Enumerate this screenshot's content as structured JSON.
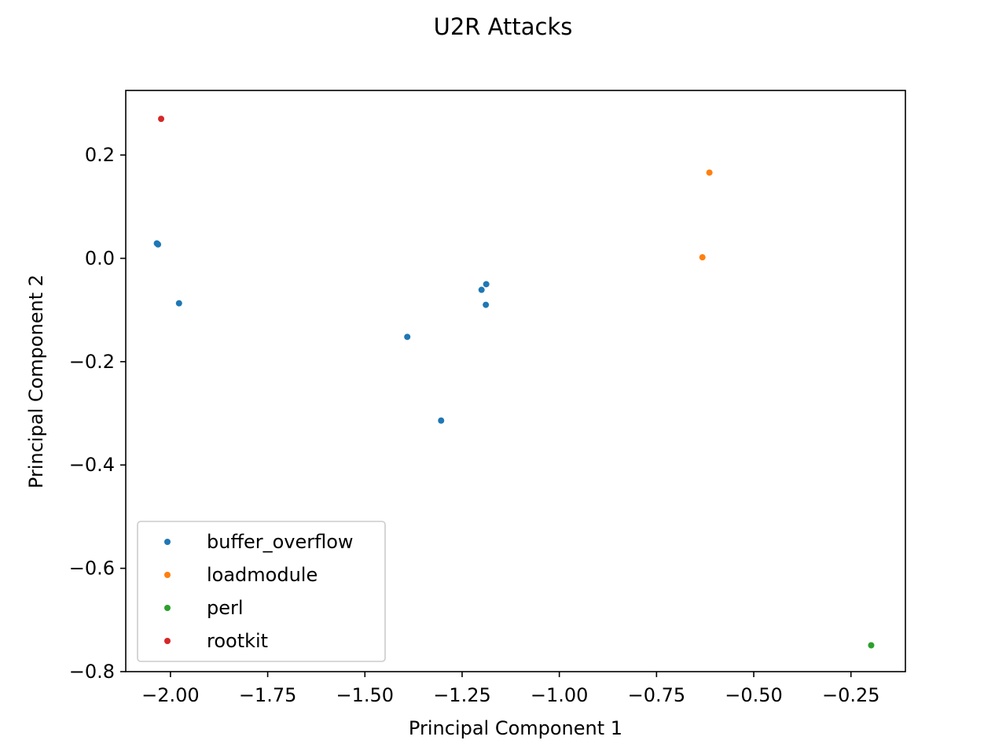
{
  "chart_data": {
    "type": "scatter",
    "title": "U2R Attacks",
    "xlabel": "Principal Component 1",
    "ylabel": "Principal Component 2",
    "xlim": [
      -2.115,
      -0.11
    ],
    "ylim": [
      -0.8,
      0.325
    ],
    "xticks": [
      -2.0,
      -1.75,
      -1.5,
      -1.25,
      -1.0,
      -0.75,
      -0.5,
      -0.25
    ],
    "xtick_labels": [
      "−2.00",
      "−1.75",
      "−1.50",
      "−1.25",
      "−1.00",
      "−0.75",
      "−0.50",
      "−0.25"
    ],
    "yticks": [
      0.2,
      0.0,
      -0.2,
      -0.4,
      -0.6,
      -0.8
    ],
    "ytick_labels": [
      "0.2",
      "0.0",
      "−0.2",
      "−0.4",
      "−0.6",
      "−0.8"
    ],
    "grid": false,
    "legend_position": "lower-left",
    "series": [
      {
        "name": "buffer_overflow",
        "color": "#1f77b4",
        "points": [
          {
            "x": -2.035,
            "y": 0.029
          },
          {
            "x": -2.032,
            "y": 0.027
          },
          {
            "x": -1.978,
            "y": -0.087
          },
          {
            "x": -1.391,
            "y": -0.152
          },
          {
            "x": -1.304,
            "y": -0.314
          },
          {
            "x": -1.2,
            "y": -0.061
          },
          {
            "x": -1.188,
            "y": -0.05
          },
          {
            "x": -1.189,
            "y": -0.09
          }
        ]
      },
      {
        "name": "loadmodule",
        "color": "#ff7f0e",
        "points": [
          {
            "x": -0.632,
            "y": 0.002
          },
          {
            "x": -0.614,
            "y": 0.166
          }
        ]
      },
      {
        "name": "perl",
        "color": "#2ca02c",
        "points": [
          {
            "x": -0.198,
            "y": -0.749
          }
        ]
      },
      {
        "name": "rootkit",
        "color": "#d62728",
        "points": [
          {
            "x": -2.024,
            "y": 0.27
          }
        ]
      }
    ]
  }
}
